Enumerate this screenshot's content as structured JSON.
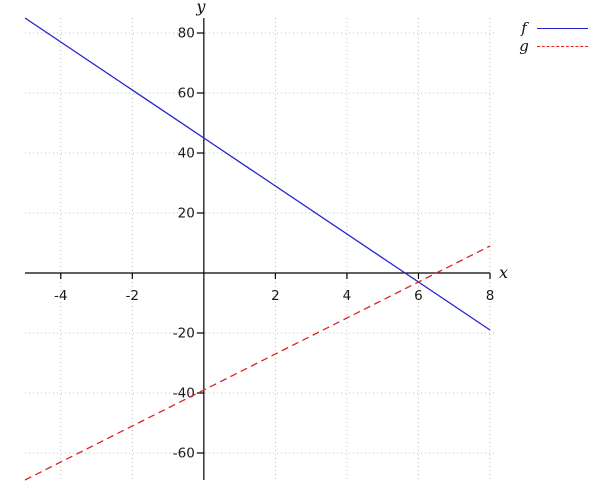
{
  "chart_data": {
    "type": "line",
    "title": "",
    "xlabel": "x",
    "ylabel": "y",
    "xlim": [
      -5,
      8
    ],
    "ylim": [
      -69,
      85
    ],
    "x_ticks": [
      -4,
      -2,
      2,
      4,
      6,
      8
    ],
    "y_ticks": [
      80,
      60,
      40,
      20,
      -20,
      -40,
      -60
    ],
    "grid": true,
    "grid_style": "dotted",
    "grid_color": "#bbbbbb",
    "axis_color": "#000000",
    "tick_label_color": "#1a1a1a",
    "legend_position": "top-right",
    "series": [
      {
        "name": "f",
        "color": "#2323cf",
        "style": "solid",
        "slope": -8,
        "intercept": 45,
        "x": [
          -5,
          0,
          8
        ],
        "y": [
          85,
          45,
          -19
        ]
      },
      {
        "name": "g",
        "color": "#e02222",
        "style": "dashed",
        "slope": 6,
        "intercept": -39,
        "x": [
          -5,
          0,
          8
        ],
        "y": [
          -69,
          -39,
          9
        ]
      }
    ],
    "intersection": {
      "x": 6,
      "y": -3
    }
  }
}
